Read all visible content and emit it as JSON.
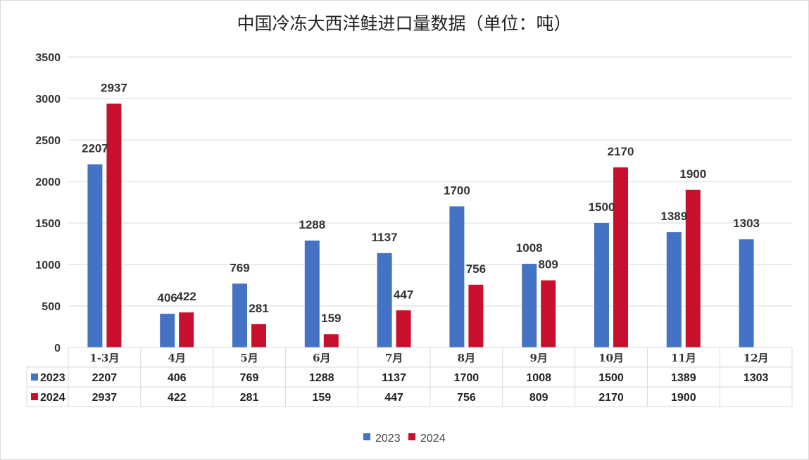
{
  "chart_data": {
    "type": "bar",
    "title": "中国冷冻大西洋鲑进口量数据（单位：吨）",
    "categories": [
      "1-3月",
      "4月",
      "5月",
      "6月",
      "7月",
      "8月",
      "9月",
      "10月",
      "11月",
      "12月"
    ],
    "series": [
      {
        "name": "2023",
        "color": "#4472C4",
        "values": [
          2207,
          406,
          769,
          1288,
          1137,
          1700,
          1008,
          1500,
          1389,
          1303
        ]
      },
      {
        "name": "2024",
        "color": "#C8102E",
        "values": [
          2937,
          422,
          281,
          159,
          447,
          756,
          809,
          2170,
          1900,
          null
        ]
      }
    ],
    "ylim": [
      0,
      3500
    ],
    "yticks": [
      0,
      500,
      1000,
      1500,
      2000,
      2500,
      3000,
      3500
    ],
    "xlabel": "",
    "ylabel": "",
    "grid": true,
    "legend": "bottom-center",
    "data_table": true
  }
}
